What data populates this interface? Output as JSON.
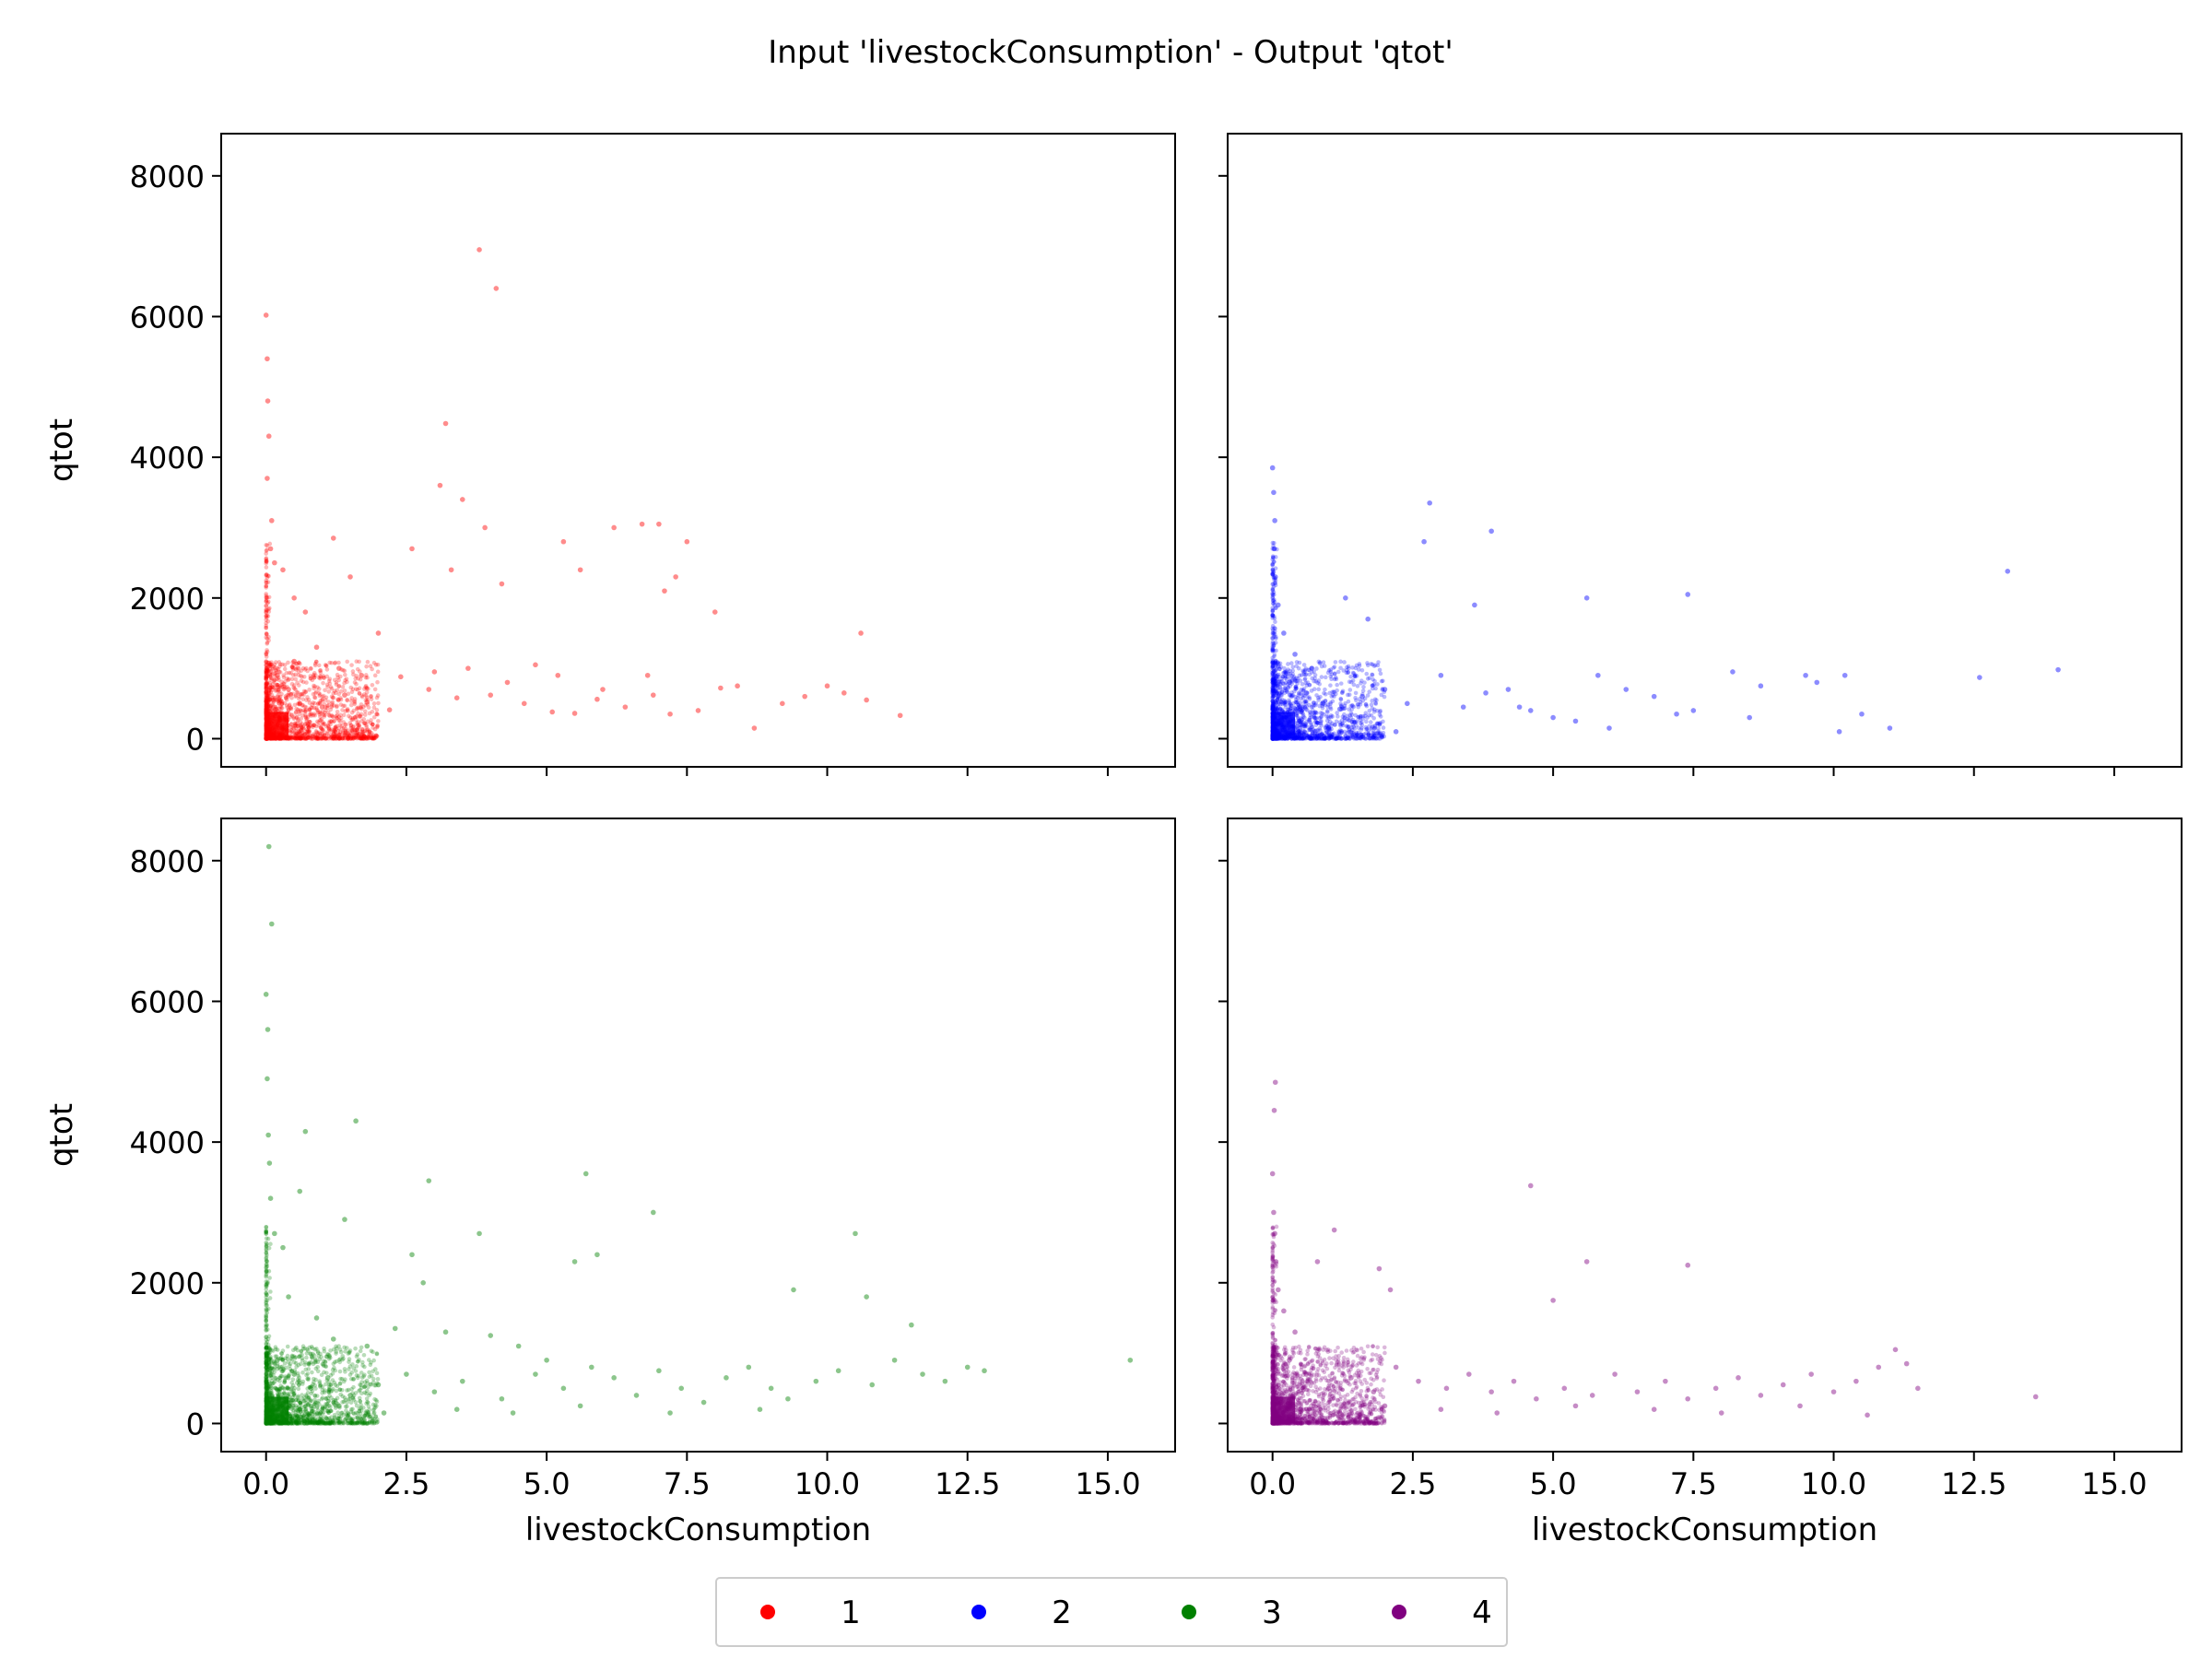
{
  "figure": {
    "title": "Input 'livestockConsumption' - Output 'qtot'"
  },
  "chart_data": {
    "type": "scatter",
    "title": "Input 'livestockConsumption' - Output 'qtot'",
    "xlabel": "livestockConsumption",
    "ylabel": "qtot",
    "xlim": [
      -0.8,
      16.2
    ],
    "ylim": [
      -400,
      8600
    ],
    "xticks": [
      "0.0",
      "2.5",
      "5.0",
      "7.5",
      "10.0",
      "12.5",
      "15.0"
    ],
    "yticks": [
      "0",
      "2000",
      "4000",
      "6000",
      "8000"
    ],
    "sharex": true,
    "sharey": true,
    "legend_position": "bottom-center",
    "panels": [
      {
        "name": "1",
        "color": "#ff0000",
        "row": 0,
        "col": 0,
        "points": [
          [
            0.0,
            6020
          ],
          [
            0.02,
            5400
          ],
          [
            0.03,
            4800
          ],
          [
            0.05,
            4300
          ],
          [
            0.02,
            3700
          ],
          [
            0.1,
            3100
          ],
          [
            0.08,
            2700
          ],
          [
            0.15,
            2500
          ],
          [
            0.3,
            2400
          ],
          [
            0.5,
            2000
          ],
          [
            0.7,
            1800
          ],
          [
            1.2,
            2850
          ],
          [
            1.5,
            2300
          ],
          [
            2.0,
            1500
          ],
          [
            2.6,
            2700
          ],
          [
            3.1,
            3600
          ],
          [
            3.2,
            4480
          ],
          [
            3.3,
            2400
          ],
          [
            3.5,
            3400
          ],
          [
            3.8,
            6950
          ],
          [
            4.1,
            6400
          ],
          [
            3.9,
            3000
          ],
          [
            4.2,
            2200
          ],
          [
            5.3,
            2800
          ],
          [
            5.6,
            2400
          ],
          [
            6.2,
            3000
          ],
          [
            6.7,
            3050
          ],
          [
            7.0,
            3050
          ],
          [
            7.5,
            2800
          ],
          [
            7.3,
            2300
          ],
          [
            7.1,
            2100
          ],
          [
            8.0,
            1800
          ],
          [
            10.6,
            1500
          ],
          [
            0.2,
            900
          ],
          [
            0.4,
            700
          ],
          [
            0.6,
            500
          ],
          [
            1.0,
            450
          ],
          [
            1.4,
            620
          ],
          [
            1.8,
            520
          ],
          [
            2.2,
            410
          ],
          [
            2.9,
            700
          ],
          [
            3.4,
            580
          ],
          [
            4.0,
            620
          ],
          [
            4.6,
            500
          ],
          [
            5.1,
            380
          ],
          [
            5.5,
            360
          ],
          [
            5.9,
            560
          ],
          [
            6.4,
            450
          ],
          [
            6.9,
            620
          ],
          [
            7.2,
            350
          ],
          [
            7.7,
            400
          ],
          [
            8.1,
            720
          ],
          [
            8.4,
            750
          ],
          [
            8.7,
            150
          ],
          [
            9.2,
            500
          ],
          [
            9.6,
            600
          ],
          [
            10.0,
            750
          ],
          [
            10.3,
            650
          ],
          [
            10.7,
            550
          ],
          [
            11.3,
            330
          ],
          [
            0.5,
            1100
          ],
          [
            0.9,
            1300
          ],
          [
            1.3,
            1000
          ],
          [
            1.7,
            900
          ],
          [
            2.4,
            880
          ],
          [
            3.0,
            950
          ],
          [
            3.6,
            1000
          ],
          [
            4.3,
            800
          ],
          [
            4.8,
            1050
          ],
          [
            5.2,
            900
          ],
          [
            6.0,
            700
          ],
          [
            6.8,
            900
          ]
        ]
      },
      {
        "name": "2",
        "color": "#0000ff",
        "row": 0,
        "col": 1,
        "points": [
          [
            0.0,
            3850
          ],
          [
            0.02,
            3500
          ],
          [
            0.04,
            3100
          ],
          [
            0.03,
            2700
          ],
          [
            0.05,
            2300
          ],
          [
            0.1,
            1900
          ],
          [
            0.2,
            1500
          ],
          [
            0.4,
            1200
          ],
          [
            0.7,
            1000
          ],
          [
            1.3,
            2000
          ],
          [
            1.7,
            1700
          ],
          [
            2.8,
            3350
          ],
          [
            2.7,
            2800
          ],
          [
            3.9,
            2950
          ],
          [
            3.6,
            1900
          ],
          [
            5.6,
            2000
          ],
          [
            7.4,
            2050
          ],
          [
            13.1,
            2380
          ],
          [
            0.3,
            800
          ],
          [
            0.6,
            650
          ],
          [
            0.9,
            500
          ],
          [
            1.2,
            420
          ],
          [
            1.6,
            600
          ],
          [
            2.0,
            700
          ],
          [
            2.4,
            500
          ],
          [
            3.0,
            900
          ],
          [
            3.4,
            450
          ],
          [
            3.8,
            650
          ],
          [
            4.2,
            700
          ],
          [
            4.6,
            400
          ],
          [
            5.0,
            300
          ],
          [
            5.4,
            250
          ],
          [
            5.8,
            900
          ],
          [
            6.3,
            700
          ],
          [
            6.8,
            600
          ],
          [
            7.2,
            350
          ],
          [
            7.5,
            400
          ],
          [
            8.2,
            950
          ],
          [
            8.7,
            750
          ],
          [
            9.5,
            900
          ],
          [
            9.7,
            800
          ],
          [
            10.2,
            900
          ],
          [
            10.1,
            100
          ],
          [
            10.5,
            350
          ],
          [
            11.0,
            150
          ],
          [
            12.6,
            870
          ],
          [
            14.0,
            980
          ],
          [
            0.15,
            300
          ],
          [
            0.5,
            200
          ],
          [
            1.0,
            150
          ],
          [
            2.2,
            100
          ],
          [
            4.4,
            450
          ],
          [
            6.0,
            150
          ],
          [
            8.5,
            300
          ]
        ]
      },
      {
        "name": "3",
        "color": "#008000",
        "row": 1,
        "col": 0,
        "points": [
          [
            0.05,
            8200
          ],
          [
            0.1,
            7100
          ],
          [
            0.0,
            6100
          ],
          [
            0.03,
            5600
          ],
          [
            0.02,
            4900
          ],
          [
            0.04,
            4100
          ],
          [
            0.06,
            3700
          ],
          [
            0.08,
            3200
          ],
          [
            0.15,
            2700
          ],
          [
            0.3,
            2500
          ],
          [
            0.6,
            3300
          ],
          [
            0.7,
            4150
          ],
          [
            1.6,
            4300
          ],
          [
            1.4,
            2900
          ],
          [
            2.9,
            3450
          ],
          [
            2.8,
            2000
          ],
          [
            2.6,
            2400
          ],
          [
            3.8,
            2700
          ],
          [
            5.7,
            3550
          ],
          [
            6.9,
            3000
          ],
          [
            10.5,
            2700
          ],
          [
            5.5,
            2300
          ],
          [
            5.9,
            2400
          ],
          [
            9.4,
            1900
          ],
          [
            10.7,
            1800
          ],
          [
            11.5,
            1400
          ],
          [
            0.4,
            1800
          ],
          [
            0.9,
            1500
          ],
          [
            1.2,
            1200
          ],
          [
            1.8,
            1100
          ],
          [
            2.3,
            1350
          ],
          [
            3.2,
            1300
          ],
          [
            4.0,
            1250
          ],
          [
            4.5,
            1100
          ],
          [
            5.0,
            900
          ],
          [
            0.2,
            900
          ],
          [
            0.5,
            700
          ],
          [
            0.8,
            500
          ],
          [
            1.1,
            650
          ],
          [
            1.5,
            400
          ],
          [
            2.0,
            550
          ],
          [
            2.5,
            700
          ],
          [
            3.0,
            450
          ],
          [
            3.5,
            600
          ],
          [
            4.2,
            350
          ],
          [
            4.8,
            700
          ],
          [
            5.3,
            500
          ],
          [
            5.8,
            800
          ],
          [
            6.2,
            650
          ],
          [
            6.6,
            400
          ],
          [
            7.0,
            750
          ],
          [
            7.4,
            500
          ],
          [
            7.8,
            300
          ],
          [
            8.2,
            650
          ],
          [
            8.6,
            800
          ],
          [
            9.0,
            500
          ],
          [
            9.3,
            350
          ],
          [
            9.8,
            600
          ],
          [
            10.2,
            750
          ],
          [
            10.8,
            550
          ],
          [
            11.2,
            900
          ],
          [
            11.7,
            700
          ],
          [
            12.1,
            600
          ],
          [
            12.5,
            800
          ],
          [
            12.8,
            750
          ],
          [
            15.4,
            900
          ],
          [
            0.1,
            300
          ],
          [
            0.6,
            200
          ],
          [
            1.3,
            250
          ],
          [
            2.1,
            150
          ],
          [
            3.4,
            200
          ],
          [
            4.4,
            150
          ],
          [
            5.6,
            250
          ],
          [
            7.2,
            150
          ],
          [
            8.8,
            200
          ]
        ]
      },
      {
        "name": "4",
        "color": "#800080",
        "row": 1,
        "col": 1,
        "points": [
          [
            0.05,
            4850
          ],
          [
            0.03,
            4450
          ],
          [
            0.0,
            3550
          ],
          [
            0.02,
            3000
          ],
          [
            0.04,
            2700
          ],
          [
            0.06,
            2300
          ],
          [
            0.1,
            1900
          ],
          [
            0.2,
            1600
          ],
          [
            0.4,
            1300
          ],
          [
            0.8,
            2300
          ],
          [
            1.1,
            2750
          ],
          [
            1.9,
            2200
          ],
          [
            2.1,
            1900
          ],
          [
            4.6,
            3380
          ],
          [
            5.6,
            2300
          ],
          [
            7.4,
            2250
          ],
          [
            5.0,
            1750
          ],
          [
            0.3,
            900
          ],
          [
            0.6,
            700
          ],
          [
            1.0,
            500
          ],
          [
            1.4,
            650
          ],
          [
            1.8,
            450
          ],
          [
            2.2,
            800
          ],
          [
            2.6,
            600
          ],
          [
            3.1,
            500
          ],
          [
            3.5,
            700
          ],
          [
            3.9,
            450
          ],
          [
            4.3,
            600
          ],
          [
            4.7,
            350
          ],
          [
            5.2,
            500
          ],
          [
            5.7,
            400
          ],
          [
            6.1,
            700
          ],
          [
            6.5,
            450
          ],
          [
            7.0,
            600
          ],
          [
            7.4,
            350
          ],
          [
            7.9,
            500
          ],
          [
            8.3,
            650
          ],
          [
            8.7,
            400
          ],
          [
            9.1,
            550
          ],
          [
            9.6,
            700
          ],
          [
            10.0,
            450
          ],
          [
            10.4,
            600
          ],
          [
            10.8,
            800
          ],
          [
            11.1,
            1050
          ],
          [
            11.3,
            850
          ],
          [
            11.5,
            500
          ],
          [
            13.6,
            380
          ],
          [
            0.15,
            300
          ],
          [
            0.5,
            200
          ],
          [
            1.2,
            150
          ],
          [
            2.0,
            250
          ],
          [
            3.0,
            200
          ],
          [
            4.0,
            150
          ],
          [
            5.4,
            250
          ],
          [
            6.8,
            200
          ],
          [
            8.0,
            150
          ],
          [
            9.4,
            250
          ],
          [
            10.6,
            120
          ]
        ]
      }
    ]
  }
}
